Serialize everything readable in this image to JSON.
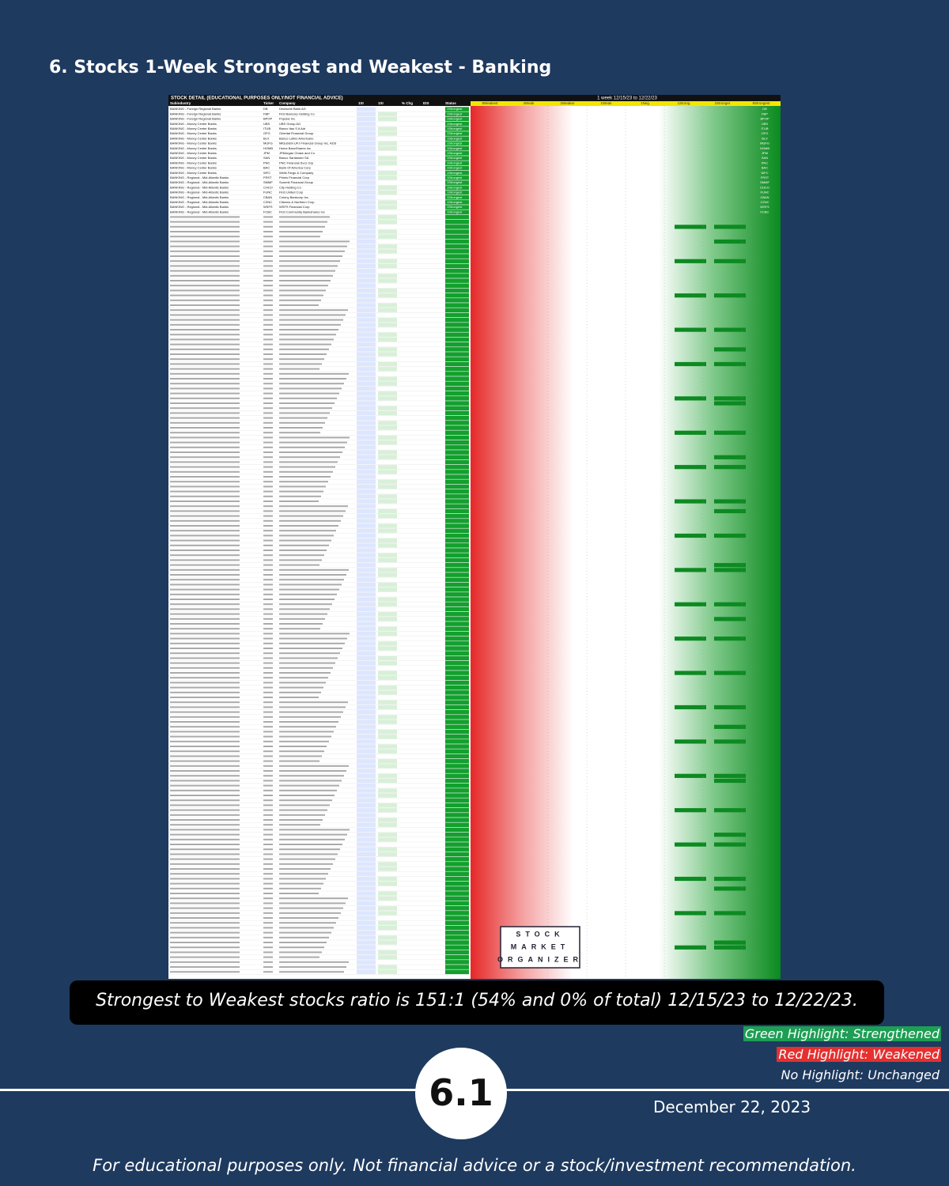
{
  "title": "6. Stocks 1-Week Strongest and Weakest - Banking",
  "table": {
    "title": "STOCK DETAIL (EDUCATIONAL PURPOSES ONLY/NOT FINANCIAL ADVICE)",
    "period": "1 week 12/15/23 to 12/22/23",
    "columns": [
      "Subindustry",
      "Ticker",
      "Company",
      "1SI",
      "1SI",
      "% Chg",
      "IDS",
      "Status"
    ],
    "right_columns": [
      "8Weakest",
      "4Weak",
      "2Weaker",
      "1Weak",
      "1Neg",
      "1Strong",
      "2Stronger",
      "8Strongest"
    ],
    "rows": [
      [
        "BANKING - Foreign Regional Banks",
        "DB",
        "Deutsche Bank AG",
        "1Strongest"
      ],
      [
        "BANKING - Foreign Regional Banks",
        "FBP",
        "First Bancorp Holding Co",
        "1Strongest"
      ],
      [
        "BANKING - Foreign Regional Banks",
        "BPOP",
        "Popular Inc",
        "1Strongest"
      ],
      [
        "BANKING - Money Center Banks",
        "UBS",
        "UBS Group AG",
        "1Strongest"
      ],
      [
        "BANKING - Money Center Banks",
        "ITUB",
        "Banco Itau S A Adr",
        "1Strongest"
      ],
      [
        "BANKING - Money Center Banks",
        "OFG",
        "Oriental Financial Group",
        "1Strongest"
      ],
      [
        "BANKING - Money Center Banks",
        "BLX",
        "Banco Latino Americano",
        "1Strongest"
      ],
      [
        "BANKING - Money Center Banks",
        "MUFG",
        "Mitsubishi UFJ Financial Group Inc. ADS",
        "1Strongest"
      ],
      [
        "BANKING - Money Center Banks",
        "HOMB",
        "Home BancShares Inc",
        "1Strongest"
      ],
      [
        "BANKING - Money Center Banks",
        "JPM",
        "JPMorgan Chase and Co",
        "1Strongest"
      ],
      [
        "BANKING - Money Center Banks",
        "SAN",
        "Banco Santander SA",
        "1Strongest"
      ],
      [
        "BANKING - Money Center Banks",
        "PNC",
        "PNC Financial Svcs Grp",
        "1Strongest"
      ],
      [
        "BANKING - Money Center Banks",
        "BAC",
        "Bank Of America Corp",
        "1Strongest"
      ],
      [
        "BANKING - Money Center Banks",
        "WFC",
        "Wells Fargo & Company",
        "1Strongest"
      ],
      [
        "BANKING - Regional - Mid-Atlantic Banks",
        "FRST",
        "Primis Financial Corp",
        "1Strongest"
      ],
      [
        "BANKING - Regional - Mid-Atlantic Banks",
        "SMMF",
        "Summit Financial Group",
        "1Strongest"
      ],
      [
        "BANKING - Regional - Mid-Atlantic Banks",
        "CHCO",
        "City Holding Co",
        "1Strongest"
      ],
      [
        "BANKING - Regional - Mid-Atlantic Banks",
        "FUNC",
        "First United Corp",
        "1Strongest"
      ],
      [
        "BANKING - Regional - Mid-Atlantic Banks",
        "CBAN",
        "Colony Bankcorp Inc",
        "1Strongest"
      ],
      [
        "BANKING - Regional - Mid-Atlantic Banks",
        "CZNC",
        "Citizens & Northern Corp",
        "1Strongest"
      ],
      [
        "BANKING - Regional - Mid-Atlantic Banks",
        "WSFS",
        "WSFS Financial Corp",
        "1Strongest"
      ],
      [
        "BANKING - Regional - Mid-Atlantic Banks",
        "FCBC",
        "First Community Bankshares Inc",
        "1Strongest"
      ]
    ]
  },
  "logo": [
    "STOCK",
    "MARKET",
    "ORGANIZER"
  ],
  "caption": "Strongest to Weakest stocks ratio is 151:1 (54% and 0% of total) 12/15/23 to 12/22/23.",
  "legend": [
    "Green Highlight: Strengthened",
    "Red Highlight: Weakened",
    "No Highlight: Unchanged"
  ],
  "badge": "6.1",
  "date": "December 22, 2023",
  "footer": "For educational purposes only. Not financial advice or a stock/investment recommendation."
}
